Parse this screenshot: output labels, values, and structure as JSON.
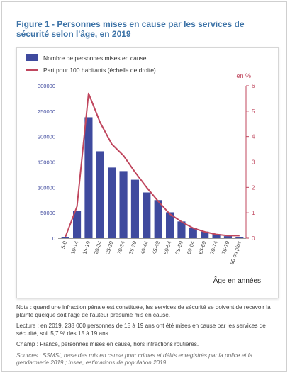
{
  "figure": {
    "title": "Figure 1 - Personnes mises en cause par les services de sécurité selon l'âge, en 2019"
  },
  "chart_data": {
    "type": "bar",
    "categories": [
      "5-9",
      "10-14",
      "15-19",
      "20-24",
      "25-29",
      "30-34",
      "35-39",
      "40-44",
      "45-49",
      "50-54",
      "55-59",
      "60-64",
      "65-69",
      "70-74",
      "75-79",
      "80 ou plus"
    ],
    "series": [
      {
        "name": "Nombre de personnes mises en cause",
        "type": "bar",
        "axis": "left",
        "color": "#3f4a9e",
        "values": [
          2000,
          54000,
          238000,
          171000,
          139000,
          132000,
          115000,
          90000,
          75000,
          51000,
          33000,
          20000,
          13000,
          8000,
          4000,
          2000
        ]
      },
      {
        "name": "Part pour 100 habitants (échelle de droite)",
        "type": "line",
        "axis": "right",
        "color": "#c0475e",
        "values": [
          0.05,
          1.25,
          5.7,
          4.55,
          3.7,
          3.25,
          2.6,
          2.0,
          1.45,
          0.95,
          0.65,
          0.4,
          0.25,
          0.15,
          0.1,
          0.1
        ]
      }
    ],
    "y_left": {
      "ticks": [
        "0",
        "50000",
        "100000",
        "150000",
        "200000",
        "250000",
        "300000"
      ],
      "range": [
        0,
        300000
      ],
      "color": "#3f4a9e"
    },
    "y_right": {
      "ticks": [
        "0",
        "1",
        "2",
        "3",
        "4",
        "5",
        "6"
      ],
      "range": [
        0,
        6
      ],
      "color": "#c0475e",
      "label": "en %"
    },
    "xlabel": "Âge en années",
    "legend_position": "top-left",
    "grid": false
  },
  "notes": {
    "note": "Note : quand une infraction pénale est constituée, les services de sécurité se doivent de recevoir la plainte quelque soit l'âge de l'auteur présumé mis en cause.",
    "lecture": "Lecture : en 2019, 238 000 personnes de 15 à 19 ans ont été mises en cause par les services de sécurité, soit 5,7 % des 15 à 19 ans.",
    "champ": "Champ : France, personnes mises en cause, hors infractions routières.",
    "sources": "Sources : SSMSI, base des mis en cause pour crimes et délits enregistrés par la police et la gendarmerie 2019 ; Insee, estimations de population 2019."
  }
}
